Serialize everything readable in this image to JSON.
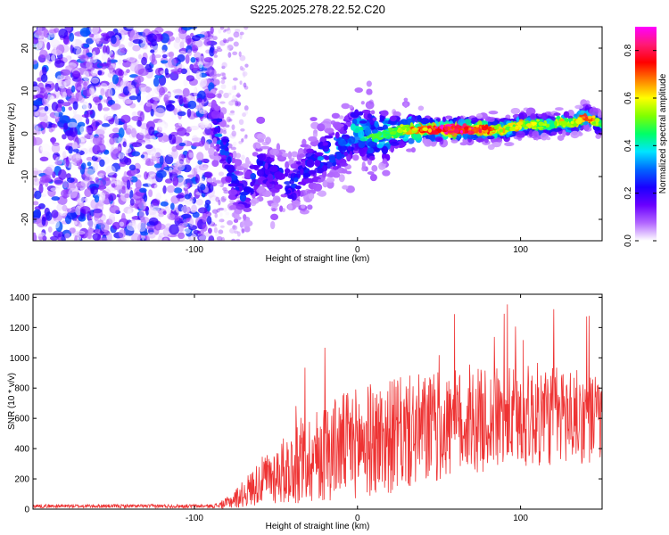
{
  "title": "S225.2025.278.22.52.C20",
  "chart_data": [
    {
      "type": "heatmap",
      "xlabel": "Height of straight line (km)",
      "ylabel": "Frequency (Hz)",
      "xlim": [
        -199,
        150
      ],
      "ylim": [
        -25,
        25
      ],
      "xticks": [
        -100,
        0,
        100
      ],
      "xtick_labels": [
        "-100",
        "0",
        "100"
      ],
      "yticks": [
        -20,
        -10,
        0,
        10,
        20
      ],
      "ytick_labels": [
        "-20",
        "-10",
        "0",
        "10",
        "20"
      ],
      "colorbar": {
        "label": "Normalized spectral amplitude",
        "range": [
          0,
          0.9
        ],
        "ticks": [
          0.0,
          0.2,
          0.4,
          0.6,
          0.8
        ],
        "tick_labels": [
          "0.0",
          "0.2",
          "0.4",
          "0.6",
          "0.8"
        ],
        "colors": [
          "#ffffff",
          "#b266ff",
          "#6a00ff",
          "#1a00ff",
          "#0066ff",
          "#00e5ff",
          "#00ff66",
          "#80ff00",
          "#ffff00",
          "#ff8000",
          "#ff0000",
          "#ff1a75",
          "#ff00ff"
        ]
      },
      "ridge": {
        "description_points_x": [
          -90,
          -85,
          -80,
          -75,
          -70,
          -60,
          -50,
          -40,
          -30,
          -20,
          -10,
          0,
          10,
          20,
          30,
          40,
          50,
          60,
          70,
          80,
          90,
          100,
          110,
          120,
          125,
          130,
          140,
          150
        ],
        "description_points_y": [
          5,
          0,
          -5,
          -12,
          -15,
          -8,
          -10,
          -12,
          -8,
          -5,
          -3,
          1,
          -1,
          0,
          1,
          1,
          1,
          1,
          1,
          1,
          1,
          2,
          2,
          2,
          3,
          2,
          4,
          2
        ],
        "description_points_amp": [
          0.2,
          0.3,
          0.3,
          0.25,
          0.25,
          0.25,
          0.25,
          0.25,
          0.25,
          0.3,
          0.35,
          0.4,
          0.45,
          0.5,
          0.6,
          0.7,
          0.85,
          0.85,
          0.8,
          0.7,
          0.6,
          0.6,
          0.55,
          0.5,
          0.6,
          0.5,
          0.8,
          0.4
        ]
      }
    },
    {
      "type": "line",
      "color": "#ee3333",
      "xlabel": "Height of straight line (km)",
      "ylabel": "SNR (10 * v/v)",
      "xlim": [
        -199,
        150
      ],
      "ylim": [
        0,
        1420
      ],
      "xticks": [
        -100,
        0,
        100
      ],
      "xtick_labels": [
        "-100",
        "0",
        "100"
      ],
      "yticks": [
        0,
        200,
        400,
        600,
        800,
        1000,
        1200,
        1400
      ],
      "ytick_labels": [
        "0",
        "200",
        "400",
        "600",
        "800",
        "1000",
        "1200",
        "1400"
      ],
      "envelope_x": [
        -199,
        -90,
        -85,
        -80,
        -70,
        -60,
        -50,
        -40,
        -30,
        -20,
        -10,
        0,
        10,
        20,
        30,
        40,
        50,
        60,
        70,
        80,
        90,
        100,
        110,
        120,
        130,
        140,
        150
      ],
      "envelope_mean": [
        20,
        20,
        25,
        40,
        100,
        180,
        230,
        280,
        330,
        380,
        420,
        440,
        460,
        480,
        500,
        520,
        540,
        560,
        580,
        590,
        600,
        610,
        620,
        620,
        620,
        600,
        600
      ],
      "envelope_spread": [
        12,
        12,
        20,
        40,
        90,
        150,
        200,
        250,
        300,
        330,
        350,
        370,
        380,
        380,
        380,
        380,
        370,
        360,
        350,
        340,
        340,
        340,
        350,
        340,
        330,
        300,
        300
      ]
    }
  ]
}
